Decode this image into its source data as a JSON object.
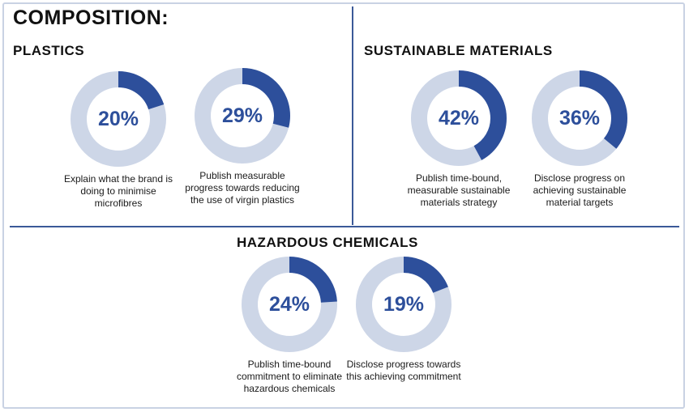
{
  "title": "COMPOSITION:",
  "colors": {
    "track": "#cdd6e7",
    "fill": "#2d4f9b",
    "divider": "#3b5998",
    "text_accent": "#2d4f9b"
  },
  "sections": {
    "plastics": {
      "title": "PLASTICS"
    },
    "sustainable": {
      "title": "SUSTAINABLE MATERIALS"
    },
    "hazardous": {
      "title": "HAZARDOUS CHEMICALS"
    }
  },
  "chart_data": [
    {
      "type": "pie",
      "section": "PLASTICS",
      "value_label": "20%",
      "values": [
        20,
        80
      ],
      "caption": "Explain what the brand is doing to minimise microfibres"
    },
    {
      "type": "pie",
      "section": "PLASTICS",
      "value_label": "29%",
      "values": [
        29,
        71
      ],
      "caption": "Publish measurable progress towards reducing the use of virgin plastics"
    },
    {
      "type": "pie",
      "section": "SUSTAINABLE MATERIALS",
      "value_label": "42%",
      "values": [
        42,
        58
      ],
      "caption": "Publish time-bound, measurable sustainable materials strategy"
    },
    {
      "type": "pie",
      "section": "SUSTAINABLE MATERIALS",
      "value_label": "36%",
      "values": [
        36,
        64
      ],
      "caption": "Disclose progress on achieving sustainable material targets"
    },
    {
      "type": "pie",
      "section": "HAZARDOUS CHEMICALS",
      "value_label": "24%",
      "values": [
        24,
        76
      ],
      "caption": "Publish time-bound commitment to eliminate hazardous chemicals"
    },
    {
      "type": "pie",
      "section": "HAZARDOUS CHEMICALS",
      "value_label": "19%",
      "values": [
        19,
        81
      ],
      "caption": "Disclose progress towards this achieving commitment"
    }
  ]
}
